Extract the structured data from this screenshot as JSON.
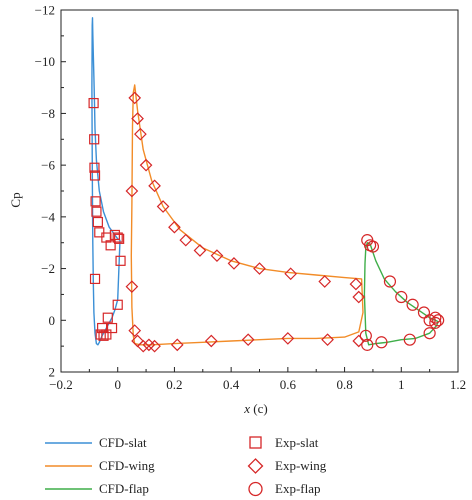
{
  "chart_data": {
    "type": "scatter",
    "xlabel": "x (c)",
    "ylabel": "Cp",
    "xlim": [
      -0.2,
      1.2
    ],
    "ylim": [
      2,
      -12
    ],
    "y_inverted": true,
    "x_ticks": [
      -0.2,
      0,
      0.2,
      0.4,
      0.6,
      0.8,
      1,
      1.2
    ],
    "x_tick_labels": [
      "−0.2",
      "0",
      "0.2",
      "0.4",
      "0.6",
      "0.8",
      "1",
      "1.2"
    ],
    "y_ticks": [
      -12,
      -10,
      -8,
      -6,
      -4,
      -2,
      0,
      2
    ],
    "y_tick_labels": [
      "−12",
      "−10",
      "−8",
      "−6",
      "−4",
      "−2",
      "0",
      "2"
    ],
    "grid": false,
    "legend_position": "below",
    "series": [
      {
        "name": "CFD-slat",
        "kind": "line",
        "color": "#3b8fd6",
        "x": [
          0.008,
          0.0,
          -0.01,
          -0.03,
          -0.05,
          -0.065,
          -0.075,
          -0.08,
          -0.082,
          -0.084,
          -0.086,
          -0.088,
          -0.089,
          -0.09,
          -0.091,
          -0.09,
          -0.089,
          -0.088,
          -0.086,
          -0.084,
          -0.08,
          -0.075,
          -0.07,
          -0.065,
          -0.055,
          -0.04,
          -0.02,
          -0.01,
          0.0,
          0.008
        ],
        "y": [
          -3.1,
          -3.15,
          -3.3,
          -3.6,
          -4.2,
          -5.0,
          -6.2,
          -7.4,
          -8.4,
          -9.4,
          -10.3,
          -11.1,
          -11.7,
          -11.4,
          -9.0,
          -6.5,
          -4.5,
          -3.0,
          -1.5,
          -0.3,
          0.5,
          0.9,
          0.95,
          0.85,
          0.6,
          0.3,
          -0.1,
          -0.4,
          -0.8,
          -3.1
        ]
      },
      {
        "name": "CFD-wing",
        "kind": "line",
        "color": "#f28c28",
        "x": [
          0.05,
          0.052,
          0.055,
          0.06,
          0.07,
          0.09,
          0.12,
          0.16,
          0.22,
          0.3,
          0.4,
          0.5,
          0.6,
          0.7,
          0.8,
          0.86,
          0.865,
          0.85,
          0.8,
          0.7,
          0.6,
          0.5,
          0.4,
          0.3,
          0.2,
          0.12,
          0.08,
          0.06,
          0.055,
          0.05,
          0.048,
          0.05
        ],
        "y": [
          -4.5,
          -7.5,
          -8.8,
          -9.1,
          -8.1,
          -6.6,
          -5.4,
          -4.4,
          -3.5,
          -2.8,
          -2.3,
          -2.0,
          -1.85,
          -1.75,
          -1.65,
          -1.6,
          -0.3,
          0.45,
          0.65,
          0.7,
          0.7,
          0.75,
          0.8,
          0.85,
          0.9,
          0.95,
          0.95,
          0.9,
          0.6,
          -0.5,
          -2.5,
          -4.5
        ]
      },
      {
        "name": "CFD-flap",
        "kind": "line",
        "color": "#3fae49",
        "x": [
          0.87,
          0.872,
          0.875,
          0.88,
          0.89,
          0.91,
          0.94,
          0.98,
          1.02,
          1.06,
          1.1,
          1.12,
          1.13,
          1.125,
          1.1,
          1.05,
          1.0,
          0.95,
          0.91,
          0.885,
          0.875,
          0.87
        ],
        "y": [
          -1.0,
          -2.2,
          -2.8,
          -3.0,
          -2.95,
          -2.3,
          -1.6,
          -1.1,
          -0.7,
          -0.4,
          -0.1,
          0.0,
          0.05,
          0.2,
          0.5,
          0.7,
          0.75,
          0.85,
          0.9,
          0.95,
          0.5,
          -1.0
        ]
      },
      {
        "name": "Exp-slat",
        "kind": "marker",
        "marker": "square",
        "color": "#d62728",
        "x": [
          -0.085,
          -0.083,
          -0.082,
          -0.08,
          -0.078,
          -0.075,
          -0.07,
          -0.065,
          -0.04,
          -0.025,
          -0.01,
          0.0,
          0.005,
          -0.035,
          -0.055,
          -0.06,
          -0.05,
          -0.04,
          -0.02,
          0.0,
          0.01,
          -0.08
        ],
        "y": [
          -8.4,
          -7.0,
          -5.9,
          -5.6,
          -4.6,
          -4.2,
          -3.8,
          -3.4,
          -3.2,
          -2.9,
          -3.3,
          -3.2,
          -3.15,
          -0.1,
          0.3,
          0.55,
          0.6,
          0.55,
          0.3,
          -0.6,
          -2.3,
          -1.6
        ]
      },
      {
        "name": "Exp-wing",
        "kind": "marker",
        "marker": "diamond",
        "color": "#d62728",
        "x": [
          0.05,
          0.06,
          0.07,
          0.08,
          0.1,
          0.13,
          0.16,
          0.2,
          0.24,
          0.29,
          0.35,
          0.41,
          0.5,
          0.61,
          0.73,
          0.84,
          0.85,
          0.05,
          0.06,
          0.07,
          0.09,
          0.11,
          0.13,
          0.21,
          0.33,
          0.46,
          0.6,
          0.74,
          0.85
        ],
        "y": [
          -5.0,
          -8.6,
          -7.8,
          -7.2,
          -6.0,
          -5.2,
          -4.4,
          -3.6,
          -3.1,
          -2.7,
          -2.5,
          -2.2,
          -2.0,
          -1.8,
          -1.5,
          -1.4,
          -0.9,
          -1.3,
          0.4,
          0.8,
          1.0,
          0.95,
          1.0,
          0.95,
          0.8,
          0.75,
          0.7,
          0.75,
          0.8
        ],
        "note": "markers on wing upper and lower surfaces"
      },
      {
        "name": "Exp-flap",
        "kind": "marker",
        "marker": "circle",
        "color": "#d62728",
        "x": [
          0.88,
          0.89,
          0.9,
          0.96,
          1.0,
          1.04,
          1.08,
          1.1,
          1.12,
          1.13,
          1.12,
          1.1,
          1.03,
          0.93,
          0.88,
          0.875
        ],
        "y": [
          -3.1,
          -2.9,
          -2.85,
          -1.5,
          -0.9,
          -0.6,
          -0.3,
          0.0,
          -0.1,
          0.0,
          0.1,
          0.5,
          0.75,
          0.85,
          0.95,
          0.6
        ]
      }
    ]
  },
  "legend": {
    "slat_line": "CFD-slat",
    "wing_line": "CFD-wing",
    "flap_line": "CFD-flap",
    "slat_exp": "Exp-slat",
    "wing_exp": "Exp-wing",
    "flap_exp": "Exp-flap"
  },
  "axis": {
    "x_label_var": "x",
    "x_label_unit": "(c)",
    "y_label": "Cp"
  }
}
